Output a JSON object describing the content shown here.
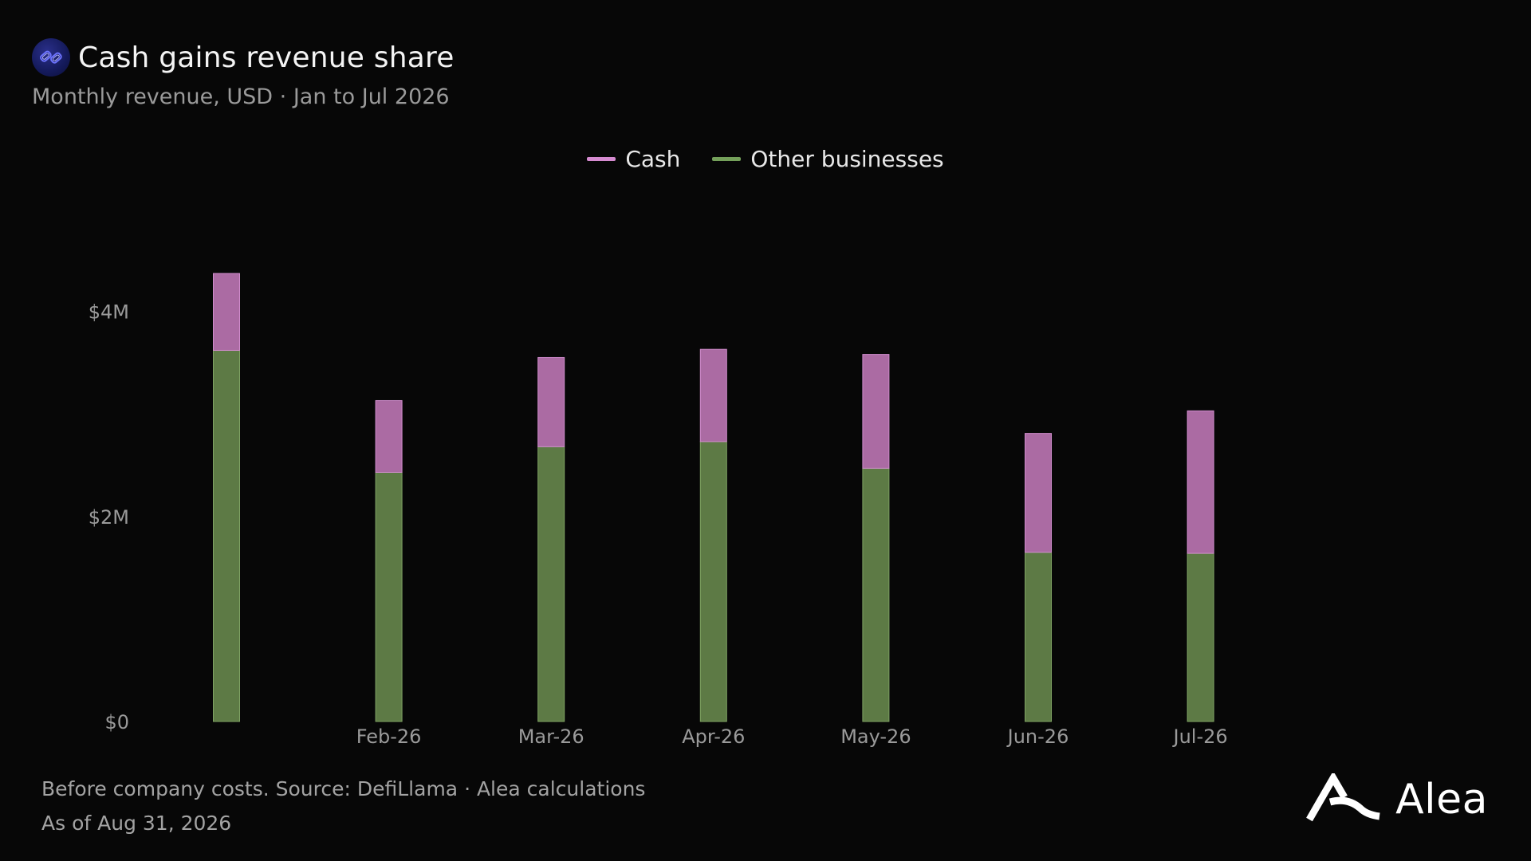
{
  "header": {
    "title": "Cash gains revenue share",
    "subtitle": "Monthly revenue, USD · Jan to Jul 2026",
    "logo_icon": "chain-link-icon"
  },
  "colors": {
    "background": "#070707",
    "cash": "#ab6ba3",
    "cash_legend": "#d58bd0",
    "other": "#5d7a45",
    "other_legend": "#74a05a"
  },
  "chart_data": {
    "type": "bar",
    "stacked": true,
    "categories": [
      "",
      "Feb-26",
      "Mar-26",
      "Apr-26",
      "May-26",
      "Jun-26",
      "Jul-26"
    ],
    "series": [
      {
        "name": "Other businesses",
        "values": [
          3.62,
          2.43,
          2.68,
          2.73,
          2.47,
          1.65,
          1.64
        ]
      },
      {
        "name": "Cash",
        "values": [
          0.75,
          0.7,
          0.87,
          0.9,
          1.11,
          1.16,
          1.39
        ]
      }
    ],
    "y_ticks": [
      {
        "value": 0,
        "label": "$0"
      },
      {
        "value": 2,
        "label": "$2M"
      },
      {
        "value": 4,
        "label": "$4M"
      }
    ],
    "ylim": [
      0,
      5.05
    ],
    "xlabel": "",
    "ylabel": "",
    "grid": false,
    "legend_position": "top-center"
  },
  "footer": {
    "note": "Before company costs. Source: DefiLlama · Alea calculations",
    "as_of": "As of Aug 31, 2026"
  },
  "brand": {
    "name": "Alea",
    "icon": "alea-logo-icon"
  }
}
